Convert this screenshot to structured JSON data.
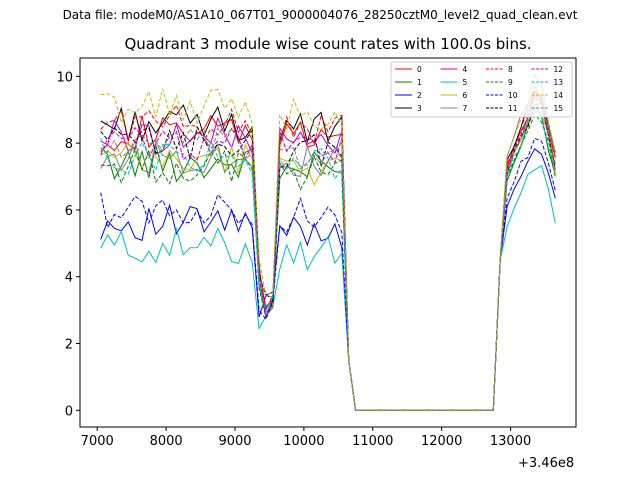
{
  "suptitle": "Data file: modeM0/AS1A10_067T01_9000004076_28250cztM0_level2_quad_clean.evt",
  "chart_data": {
    "type": "line",
    "title": "Quadrant 3 module wise count rates with 100.0s bins.",
    "xlabel": "",
    "ylabel": "",
    "x_offset_label": "+3.46e8",
    "xlim": [
      6750,
      13950
    ],
    "ylim": [
      -0.5,
      10.55
    ],
    "xticks": [
      7000,
      8000,
      9000,
      10000,
      11000,
      12000,
      13000
    ],
    "yticks": [
      0,
      2,
      4,
      6,
      8,
      10
    ],
    "grid": false,
    "legend_position": "top-right",
    "x_start": 7050,
    "x_step": 100,
    "x_units_note": "values shown relative to offset +3.46e8",
    "series": [
      {
        "name": "0",
        "color": "#ff0000",
        "dash": "solid",
        "hi_level": 8.3,
        "hi_scale": 1.04
      },
      {
        "name": "1",
        "color": "#008000",
        "dash": "solid",
        "hi_level": 7.4,
        "hi_scale": 0.98
      },
      {
        "name": "2",
        "color": "#0000ff",
        "dash": "solid",
        "hi_level": 5.6,
        "hi_scale": 0.86
      },
      {
        "name": "3",
        "color": "#000000",
        "dash": "solid",
        "hi_level": 8.6,
        "hi_scale": 1.05
      },
      {
        "name": "4",
        "color": "#bf00bf",
        "dash": "solid",
        "hi_level": 8.2,
        "hi_scale": 1.02
      },
      {
        "name": "5",
        "color": "#00bfbf",
        "dash": "solid",
        "hi_level": 4.9,
        "hi_scale": 0.8
      },
      {
        "name": "6",
        "color": "#bfbf00",
        "dash": "solid",
        "hi_level": 7.5,
        "hi_scale": 1.0
      },
      {
        "name": "7",
        "color": "#808080",
        "dash": "solid",
        "hi_level": 7.6,
        "hi_scale": 1.08
      },
      {
        "name": "8",
        "color": "#ff0000",
        "dash": "dashed",
        "hi_level": 8.6,
        "hi_scale": 1.03
      },
      {
        "name": "9",
        "color": "#008000",
        "dash": "dashed",
        "hi_level": 7.3,
        "hi_scale": 0.97
      },
      {
        "name": "10",
        "color": "#0000ff",
        "dash": "dashed",
        "hi_level": 6.0,
        "hi_scale": 0.9
      },
      {
        "name": "11",
        "color": "#000000",
        "dash": "dashed",
        "hi_level": 8.0,
        "hi_scale": 1.0
      },
      {
        "name": "12",
        "color": "#bf00bf",
        "dash": "dashed",
        "hi_level": 8.0,
        "hi_scale": 1.01
      },
      {
        "name": "13",
        "color": "#00bfbf",
        "dash": "dashed",
        "hi_level": 7.6,
        "hi_scale": 0.99
      },
      {
        "name": "14",
        "color": "#bfbf00",
        "dash": "dashed",
        "hi_level": 9.1,
        "hi_scale": 1.06
      },
      {
        "name": "15",
        "color": "#808080",
        "dash": "dashed",
        "hi_level": 7.9,
        "hi_scale": 1.02
      }
    ]
  }
}
